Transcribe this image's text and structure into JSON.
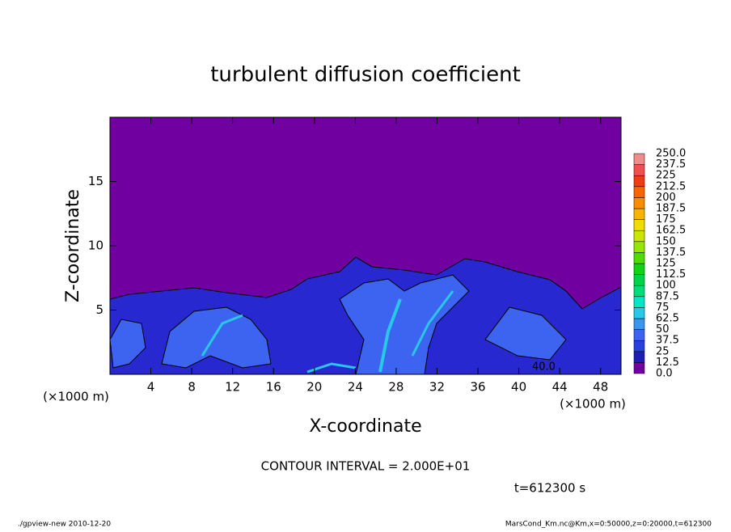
{
  "chart_data": {
    "type": "contour",
    "title": "turbulent diffusion coefficient",
    "x_label": "X-coordinate",
    "y_label": "Z-coordinate",
    "x_unit": "(×1000 m)",
    "y_unit": "(×1000 m)",
    "xlim": [
      0,
      50
    ],
    "xticks": [
      4,
      8,
      12,
      16,
      20,
      24,
      28,
      32,
      36,
      40,
      44,
      48
    ],
    "ylim": [
      0,
      20
    ],
    "yticks": [
      5,
      10,
      15
    ],
    "contour_label": "40.0",
    "contour_interval": "CONTOUR INTERVAL = 2.000E+01",
    "time_label": "t=612300 s",
    "footer_left": "./gpview-new  2010-12-20",
    "footer_right": "MarsCond_Km.nc@Km,x=0:50000,z=0:20000,t=612300",
    "colorbar": {
      "levels": [
        {
          "value": 0,
          "label": "0.0"
        },
        12.5,
        25,
        37.5,
        50,
        62.5,
        75,
        87.5,
        100,
        112.5,
        125,
        137.5,
        150,
        162.5,
        175,
        187.5,
        200,
        212.5,
        225,
        237.5,
        {
          "value": 250,
          "label": "250.0"
        }
      ],
      "colors": [
        "#7000a0",
        "#1e1eb4",
        "#2840e0",
        "#3c64f0",
        "#3c96f0",
        "#28c8e6",
        "#00e6c8",
        "#00dc78",
        "#00d24b",
        "#14d214",
        "#50dc00",
        "#96e600",
        "#c8e600",
        "#f0dc00",
        "#fab400",
        "#fa8c00",
        "#fa6400",
        "#f03c14",
        "#f05050",
        "#f08c8c"
      ]
    }
  }
}
